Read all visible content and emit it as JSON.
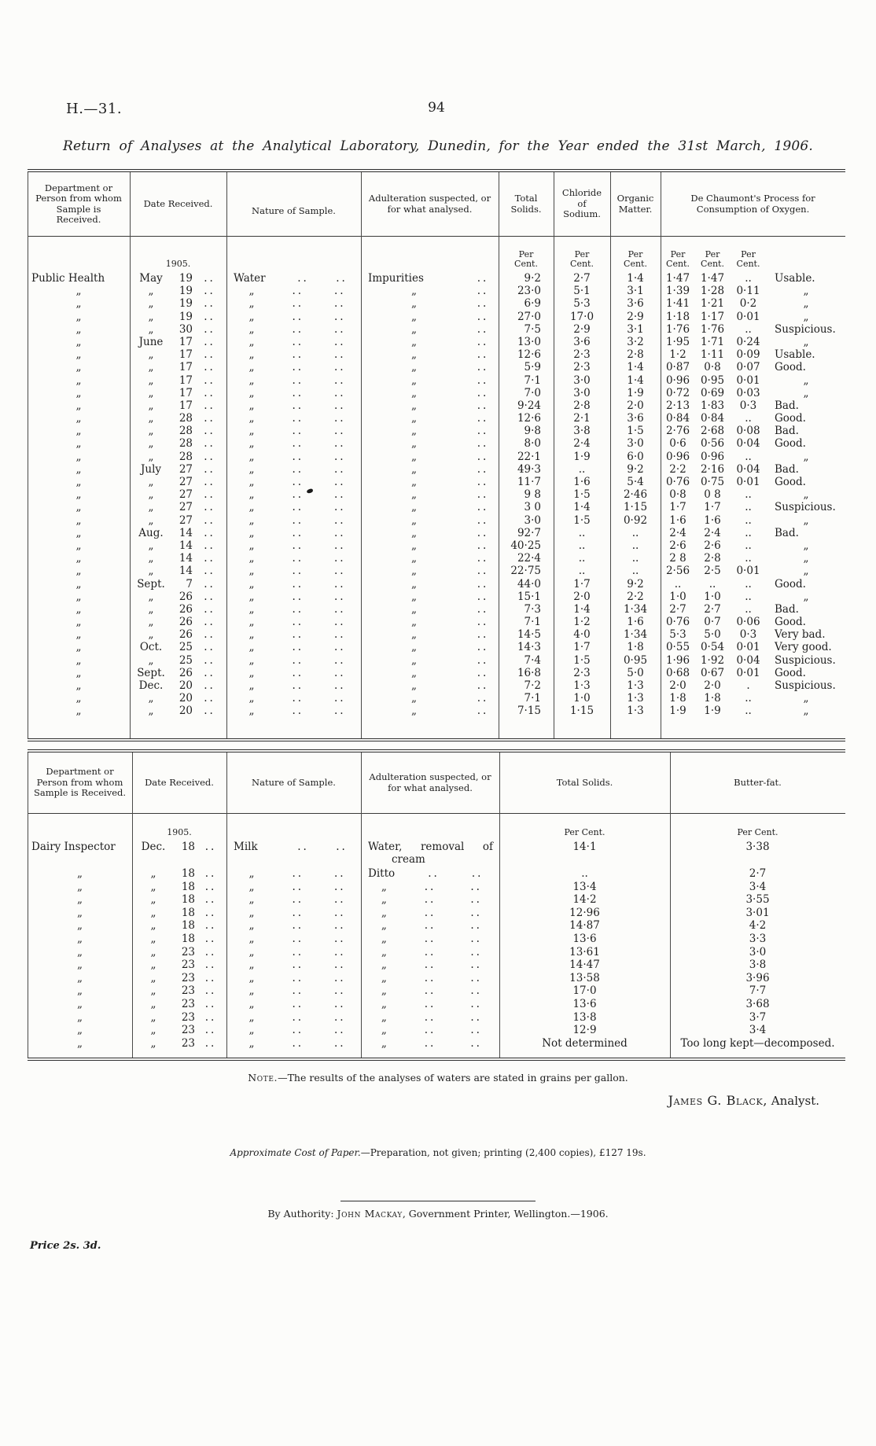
{
  "page": {
    "doc_ref": "H.—31.",
    "page_number": "94",
    "title": "Return of Analyses at the Analytical Laboratory, Dunedin, for the Year ended the 31st March, 1906."
  },
  "labels": {
    "year": "1905.",
    "per_cent": "Per Cent.",
    "dots": "..",
    "ditto": "„"
  },
  "table1": {
    "headers": [
      "Department or Person from whom Sample is Received.",
      "Date Received.",
      "Nature of Sample.",
      "Adulteration suspected, or for what analysed.",
      "Total Solids.",
      "Chloride of Sodium.",
      "Organic Matter.",
      "De Chaumont's Process for Consumption of Oxygen."
    ],
    "row_fields": [
      "department",
      "month",
      "day",
      "nature",
      "adulteration",
      "total_solids",
      "chloride_of_sodium",
      "organic_matter",
      "oxygen_1",
      "oxygen_2",
      "oxygen_3",
      "remark"
    ],
    "rows": [
      [
        "Public Health",
        "May",
        "19",
        "Water",
        "Impurities",
        "9·2",
        "2·7",
        "1·4",
        "1·47",
        "1·47",
        "..",
        "Usable."
      ],
      [
        "„",
        "„",
        "19",
        "„",
        "„",
        "23·0",
        "5·1",
        "3·1",
        "1·39",
        "1·28",
        "0·11",
        "„"
      ],
      [
        "„",
        "„",
        "19",
        "„",
        "„",
        "6·9",
        "5·3",
        "3·6",
        "1·41",
        "1·21",
        "0·2",
        "„"
      ],
      [
        "„",
        "„",
        "19",
        "„",
        "„",
        "27·0",
        "17·0",
        "2·9",
        "1·18",
        "1·17",
        "0·01",
        "„"
      ],
      [
        "„",
        "„",
        "30",
        "„",
        "„",
        "7·5",
        "2·9",
        "3·1",
        "1·76",
        "1·76",
        "..",
        "Suspicious."
      ],
      [
        "„",
        "June",
        "17",
        "„",
        "„",
        "13·0",
        "3·6",
        "3·2",
        "1·95",
        "1·71",
        "0·24",
        "„"
      ],
      [
        "„",
        "„",
        "17",
        "„",
        "„",
        "12·6",
        "2·3",
        "2·8",
        "1·2",
        "1·11",
        "0·09",
        "Usable."
      ],
      [
        "„",
        "„",
        "17",
        "„",
        "„",
        "5·9",
        "2·3",
        "1·4",
        "0·87",
        "0·8",
        "0·07",
        "Good."
      ],
      [
        "„",
        "„",
        "17",
        "„",
        "„",
        "7·1",
        "3·0",
        "1·4",
        "0·96",
        "0·95",
        "0·01",
        "„"
      ],
      [
        "„",
        "„",
        "17",
        "„",
        "„",
        "7·0",
        "3·0",
        "1·9",
        "0·72",
        "0·69",
        "0·03",
        "„"
      ],
      [
        "„",
        "„",
        "17",
        "„",
        "„",
        "9·24",
        "2·8",
        "2·0",
        "2·13",
        "1·83",
        "0·3",
        "Bad."
      ],
      [
        "„",
        "„",
        "28",
        "„",
        "„",
        "12·6",
        "2·1",
        "3·6",
        "0·84",
        "0·84",
        "..",
        "Good."
      ],
      [
        "„",
        "„",
        "28",
        "„",
        "„",
        "9·8",
        "3·8",
        "1·5",
        "2·76",
        "2·68",
        "0·08",
        "Bad."
      ],
      [
        "„",
        "„",
        "28",
        "„",
        "„",
        "8·0",
        "2·4",
        "3·0",
        "0·6",
        "0·56",
        "0·04",
        "Good."
      ],
      [
        "„",
        "„",
        "28",
        "„",
        "„",
        "22·1",
        "1·9",
        "6·0",
        "0·96",
        "0·96",
        "..",
        "„"
      ],
      [
        "„",
        "July",
        "27",
        "„",
        "„",
        "49·3",
        "..",
        "9·2",
        "2·2",
        "2·16",
        "0·04",
        "Bad."
      ],
      [
        "„",
        "„",
        "27",
        "„",
        "„",
        "11·7",
        "1·6",
        "5·4",
        "0·76",
        "0·75",
        "0·01",
        "Good."
      ],
      [
        "„",
        "„",
        "27",
        "„",
        "„",
        "9 8",
        "1·5",
        "2·46",
        "0·8",
        "0 8",
        "..",
        "„"
      ],
      [
        "„",
        "„",
        "27",
        "„",
        "„",
        "3 0",
        "1·4",
        "1·15",
        "1·7",
        "1·7",
        "..",
        "Suspicious."
      ],
      [
        "„",
        "„",
        "27",
        "„",
        "„",
        "3·0",
        "1·5",
        "0·92",
        "1·6",
        "1·6",
        "..",
        "„"
      ],
      [
        "„",
        "Aug.",
        "14",
        "„",
        "„",
        "92·7",
        "..",
        "..",
        "2·4",
        "2·4",
        "..",
        "Bad."
      ],
      [
        "„",
        "„",
        "14",
        "„",
        "„",
        "40·25",
        "..",
        "..",
        "2·6",
        "2·6",
        "..",
        "„"
      ],
      [
        "„",
        "„",
        "14",
        "„",
        "„",
        "22·4",
        "..",
        "..",
        "2 8",
        "2·8",
        "..",
        "„"
      ],
      [
        "„",
        "„",
        "14",
        "„",
        "„",
        "22·75",
        "..",
        "..",
        "2·56",
        "2·5",
        "0·01",
        "„"
      ],
      [
        "„",
        "Sept.",
        "7",
        "„",
        "„",
        "44·0",
        "1·7",
        "9·2",
        "..",
        "..",
        "..",
        "Good."
      ],
      [
        "„",
        "„",
        "26",
        "„",
        "„",
        "15·1",
        "2·0",
        "2·2",
        "1·0",
        "1·0",
        "..",
        "„"
      ],
      [
        "„",
        "„",
        "26",
        "„",
        "„",
        "7·3",
        "1·4",
        "1·34",
        "2·7",
        "2·7",
        "..",
        "Bad."
      ],
      [
        "„",
        "„",
        "26",
        "„",
        "„",
        "7·1",
        "1·2",
        "1·6",
        "0·76",
        "0·7",
        "0·06",
        "Good."
      ],
      [
        "„",
        "„",
        "26",
        "„",
        "„",
        "14·5",
        "4·0",
        "1·34",
        "5·3",
        "5·0",
        "0·3",
        "Very bad."
      ],
      [
        "„",
        "Oct.",
        "25",
        "„",
        "„",
        "14·3",
        "1·7",
        "1·8",
        "0·55",
        "0·54",
        "0·01",
        "Very good."
      ],
      [
        "„",
        "„",
        "25",
        "„",
        "„",
        "7·4",
        "1·5",
        "0·95",
        "1·96",
        "1·92",
        "0·04",
        "Suspicious."
      ],
      [
        "„",
        "Sept.",
        "26",
        "„",
        "„",
        "16·8",
        "2·3",
        "5·0",
        "0·68",
        "0·67",
        "0·01",
        "Good."
      ],
      [
        "„",
        "Dec.",
        "20",
        "„",
        "„",
        "7·2",
        "1·3",
        "1·3",
        "2·0",
        "2·0",
        ".",
        "Suspicious."
      ],
      [
        "„",
        "„",
        "20",
        "„",
        "„",
        "7·1",
        "1·0",
        "1·3",
        "1·8",
        "1·8",
        "..",
        "„"
      ],
      [
        "„",
        "„",
        "20",
        "„",
        "„",
        "7·15",
        "1·15",
        "1·3",
        "1·9",
        "1·9",
        "..",
        "„"
      ]
    ]
  },
  "table2": {
    "headers": [
      "Department or Person from whom Sample is Received.",
      "Date Received.",
      "Nature of Sample.",
      "Adulteration suspected, or for what analysed.",
      "Total Solids.",
      "Butter-fat."
    ],
    "row_fields": [
      "department",
      "month",
      "day",
      "nature",
      "adulteration",
      "total_solids",
      "butter_fat"
    ],
    "rows": [
      [
        "Dairy Inspector",
        "Dec.",
        "18",
        "Milk",
        "Water, removal of|cream",
        "14·1",
        "3·38"
      ],
      [
        "„",
        "„",
        "18",
        "„",
        "Ditto",
        "..",
        "2·7"
      ],
      [
        "„",
        "„",
        "18",
        "„",
        "„",
        "13·4",
        "3·4"
      ],
      [
        "„",
        "„",
        "18",
        "„",
        "„",
        "14·2",
        "3·55"
      ],
      [
        "„",
        "„",
        "18",
        "„",
        "„",
        "12·96",
        "3·01"
      ],
      [
        "„",
        "„",
        "18",
        "„",
        "„",
        "14·87",
        "4·2"
      ],
      [
        "„",
        "„",
        "18",
        "„",
        "„",
        "13·6",
        "3·3"
      ],
      [
        "„",
        "„",
        "23",
        "„",
        "„",
        "13·61",
        "3·0"
      ],
      [
        "„",
        "„",
        "23",
        "„",
        "„",
        "14·47",
        "3·8"
      ],
      [
        "„",
        "„",
        "23",
        "„",
        "„",
        "13·58",
        "3·96"
      ],
      [
        "„",
        "„",
        "23",
        "„",
        "„",
        "17·0",
        "7·7"
      ],
      [
        "„",
        "„",
        "23",
        "„",
        "„",
        "13·6",
        "3·68"
      ],
      [
        "„",
        "„",
        "23",
        "„",
        "„",
        "13·8",
        "3·7"
      ],
      [
        "„",
        "„",
        "23",
        "„",
        "„",
        "12·9",
        "3·4"
      ],
      [
        "„",
        "„",
        "23",
        "„",
        "„",
        "Not determined",
        "Too long kept—decomposed."
      ]
    ]
  },
  "footer": {
    "note_prefix": "Note.",
    "note_rest": "—The results of the analyses of waters are stated in grains per gallon.",
    "signature_name": "James G. Black,",
    "signature_role": " Analyst.",
    "cost_italic": "Approximate Cost of Paper.",
    "cost_rest": "—Preparation, not given; printing (2,400 copies), £127 19s.",
    "authority_prefix": "By Authority: ",
    "authority_name": "John Mackay",
    "authority_rest": ", Government Printer, Wellington.—1906.",
    "price": "Price 2s. 3d."
  },
  "colors": {
    "paper": "#fcfcfa",
    "ink": "#1e1e1e",
    "rule": "#2c2c2c"
  }
}
